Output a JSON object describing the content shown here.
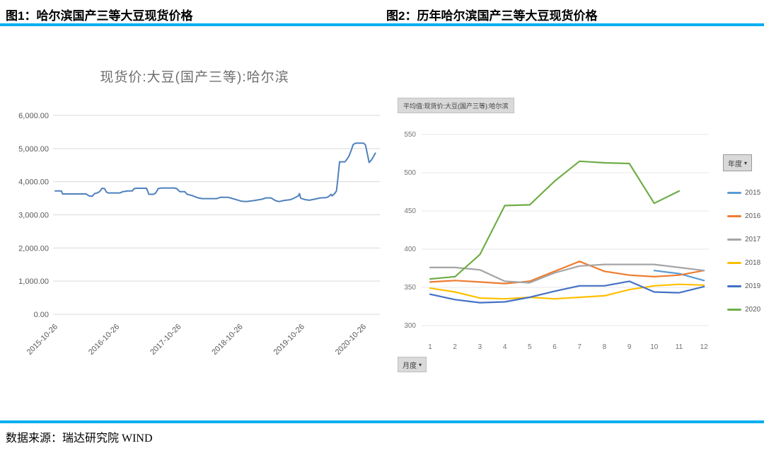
{
  "headers": {
    "fig1": "图1：哈尔滨国产三等大豆现货价格",
    "fig2": "图2：历年哈尔滨国产三等大豆现货价格"
  },
  "footer": {
    "source": "数据来源：瑞达研究院 WIND"
  },
  "icons": {
    "dropdown_arrow": "▾"
  },
  "colors": {
    "rule": "#00AEEF",
    "grid1": "#d9d9d9",
    "grid2": "#e7e7e7",
    "chart1_line": "#4F81BD"
  },
  "chart_data": [
    {
      "type": "line",
      "title": "现货价:大豆(国产三等):哈尔滨",
      "x_tick_labels": [
        "2015-10-26",
        "2016-10-26",
        "2017-10-26",
        "2018-10-26",
        "2019-10-26",
        "2020-10-26"
      ],
      "y_tick_labels": [
        "0.00",
        "1,000.00",
        "2,000.00",
        "3,000.00",
        "4,000.00",
        "5,000.00",
        "6,000.00"
      ],
      "ylim": [
        0,
        6000
      ],
      "xlim_years": [
        0,
        5.25
      ],
      "grid": true,
      "series": [
        {
          "name": "现货价:大豆(国产三等):哈尔滨",
          "color": "#4F81BD",
          "points": [
            [
              0.0,
              3720
            ],
            [
              0.1,
              3720
            ],
            [
              0.12,
              3630
            ],
            [
              0.5,
              3630
            ],
            [
              0.55,
              3570
            ],
            [
              0.6,
              3560
            ],
            [
              0.64,
              3640
            ],
            [
              0.68,
              3660
            ],
            [
              0.72,
              3700
            ],
            [
              0.76,
              3800
            ],
            [
              0.8,
              3790
            ],
            [
              0.83,
              3690
            ],
            [
              0.86,
              3660
            ],
            [
              1.05,
              3660
            ],
            [
              1.1,
              3700
            ],
            [
              1.18,
              3720
            ],
            [
              1.25,
              3720
            ],
            [
              1.28,
              3790
            ],
            [
              1.32,
              3800
            ],
            [
              1.48,
              3800
            ],
            [
              1.52,
              3620
            ],
            [
              1.6,
              3620
            ],
            [
              1.63,
              3660
            ],
            [
              1.67,
              3790
            ],
            [
              1.72,
              3810
            ],
            [
              1.93,
              3810
            ],
            [
              1.97,
              3790
            ],
            [
              2.02,
              3700
            ],
            [
              2.1,
              3700
            ],
            [
              2.14,
              3620
            ],
            [
              2.22,
              3580
            ],
            [
              2.3,
              3520
            ],
            [
              2.38,
              3490
            ],
            [
              2.62,
              3490
            ],
            [
              2.68,
              3530
            ],
            [
              2.8,
              3530
            ],
            [
              2.88,
              3490
            ],
            [
              2.95,
              3450
            ],
            [
              3.02,
              3410
            ],
            [
              3.1,
              3400
            ],
            [
              3.22,
              3430
            ],
            [
              3.35,
              3470
            ],
            [
              3.42,
              3510
            ],
            [
              3.5,
              3510
            ],
            [
              3.57,
              3430
            ],
            [
              3.63,
              3400
            ],
            [
              3.7,
              3430
            ],
            [
              3.82,
              3460
            ],
            [
              3.88,
              3510
            ],
            [
              3.94,
              3570
            ],
            [
              3.96,
              3640
            ],
            [
              3.98,
              3500
            ],
            [
              4.05,
              3460
            ],
            [
              4.12,
              3440
            ],
            [
              4.2,
              3470
            ],
            [
              4.3,
              3510
            ],
            [
              4.4,
              3520
            ],
            [
              4.44,
              3560
            ],
            [
              4.47,
              3620
            ],
            [
              4.49,
              3570
            ],
            [
              4.53,
              3640
            ],
            [
              4.56,
              3720
            ],
            [
              4.58,
              4050
            ],
            [
              4.61,
              4600
            ],
            [
              4.7,
              4600
            ],
            [
              4.73,
              4680
            ],
            [
              4.76,
              4760
            ],
            [
              4.79,
              4900
            ],
            [
              4.81,
              5000
            ],
            [
              4.83,
              5120
            ],
            [
              4.87,
              5160
            ],
            [
              5.0,
              5160
            ],
            [
              5.03,
              5110
            ],
            [
              5.06,
              4850
            ],
            [
              5.09,
              4580
            ],
            [
              5.13,
              4660
            ],
            [
              5.19,
              4860
            ]
          ]
        }
      ]
    },
    {
      "type": "line",
      "avg_button": "平均值:现货价:大豆(国产三等):哈尔滨",
      "legend_button": "年度",
      "period_button": "月度",
      "x_tick_labels": [
        "1",
        "2",
        "3",
        "4",
        "5",
        "6",
        "7",
        "8",
        "9",
        "10",
        "11",
        "12"
      ],
      "yticks": [
        300,
        350,
        400,
        450,
        500,
        550
      ],
      "ylim": [
        300,
        550
      ],
      "grid": true,
      "legend_position": "right",
      "series": [
        {
          "name": "2015",
          "color": "#5B9BD5",
          "values": [
            null,
            null,
            null,
            null,
            null,
            null,
            null,
            null,
            null,
            372,
            368,
            359
          ]
        },
        {
          "name": "2016",
          "color": "#ED7D31",
          "values": [
            357,
            359,
            357,
            355,
            358,
            371,
            384,
            371,
            366,
            364,
            366,
            372
          ]
        },
        {
          "name": "2017",
          "color": "#A5A5A5",
          "values": [
            376,
            376,
            373,
            358,
            356,
            369,
            378,
            380,
            380,
            380,
            376,
            372
          ]
        },
        {
          "name": "2018",
          "color": "#FFC000",
          "values": [
            349,
            344,
            336,
            335,
            337,
            335,
            337,
            339,
            347,
            352,
            354,
            353
          ]
        },
        {
          "name": "2019",
          "color": "#4472C4",
          "values": [
            341,
            334,
            330,
            331,
            337,
            345,
            352,
            352,
            358,
            344,
            343,
            351
          ]
        },
        {
          "name": "2020",
          "color": "#70AD47",
          "values": [
            361,
            364,
            393,
            457,
            458,
            489,
            515,
            513,
            512,
            460,
            476,
            null
          ]
        }
      ]
    }
  ]
}
